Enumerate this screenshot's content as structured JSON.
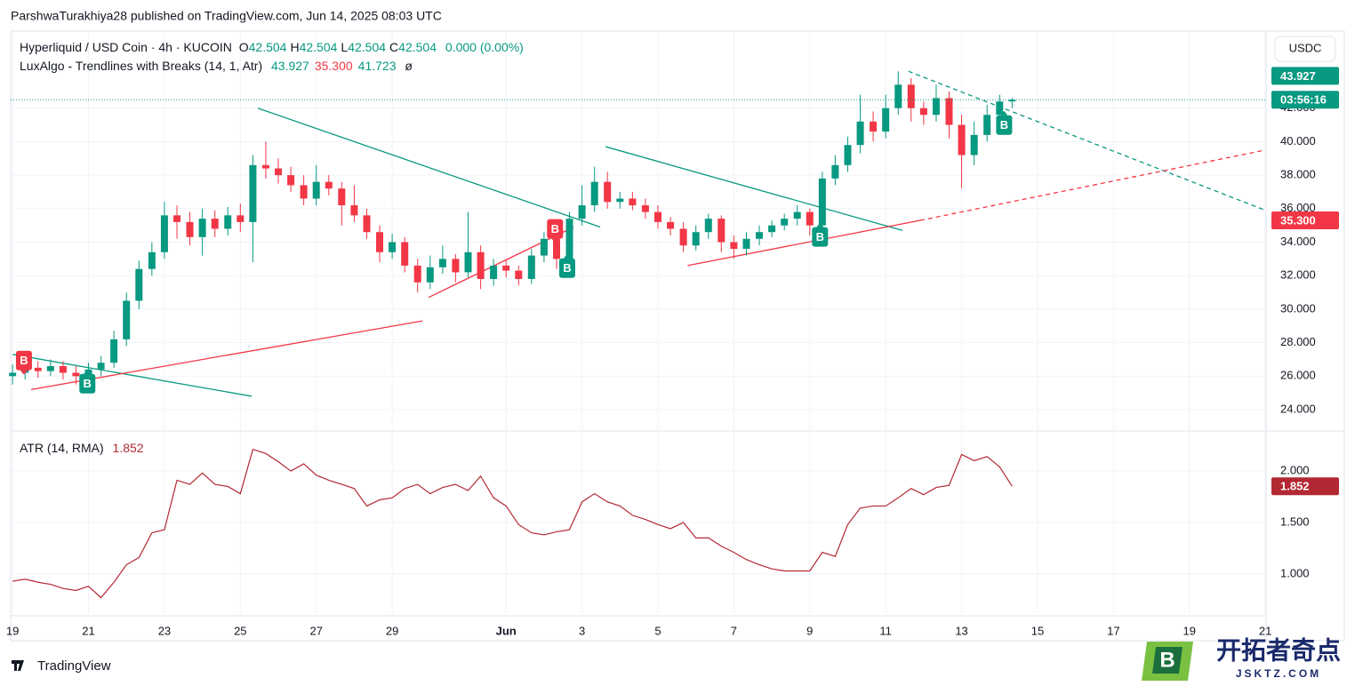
{
  "header": {
    "attribution": "ParshwaTurakhiya28 published on TradingView.com, Jun 14, 2025 08:03 UTC"
  },
  "chart_data": {
    "type": "candlestick",
    "symbol": "Hyperliquid / USD Coin · 4h · KUCOIN",
    "ohlc_legend": [
      {
        "key": "O",
        "value": "42.504"
      },
      {
        "key": "H",
        "value": "42.504"
      },
      {
        "key": "L",
        "value": "42.504"
      },
      {
        "key": "C",
        "value": "42.504"
      }
    ],
    "change": "0.000 (0.00%)",
    "indicator": {
      "name": "LuxAlgo - Trendlines with Breaks (14, 1, Atr)",
      "values": [
        {
          "text": "43.927",
          "color": "#089981"
        },
        {
          "text": "35.300",
          "color": "#f23645"
        },
        {
          "text": "41.723",
          "color": "#089981"
        }
      ],
      "symbol": "ø"
    },
    "currency": "USDC",
    "up_color": "#089981",
    "down_color": "#f23645",
    "x": [
      0,
      0.33,
      0.67,
      1,
      1.33,
      1.67,
      2,
      2.33,
      2.67,
      3,
      3.33,
      3.67,
      4,
      4.33,
      4.67,
      5,
      5.33,
      5.67,
      6,
      6.33,
      6.67,
      7,
      7.33,
      7.67,
      8,
      8.33,
      8.67,
      9,
      9.33,
      9.67,
      10,
      10.33,
      10.67,
      11,
      11.33,
      11.67,
      12,
      12.33,
      12.67,
      13,
      13.33,
      13.67,
      14,
      14.33,
      14.67,
      15,
      15.33,
      15.67,
      16,
      16.33,
      16.67,
      17,
      17.33,
      17.67,
      18,
      18.33,
      18.67,
      19,
      19.33,
      19.67,
      20,
      20.33,
      20.67,
      21,
      21.33,
      21.67,
      22,
      22.33,
      22.67,
      23,
      23.33,
      23.67,
      24,
      24.33,
      24.67,
      25,
      25.33,
      25.67,
      26,
      26.33
    ],
    "open": [
      26.0,
      26.2,
      26.5,
      26.3,
      26.6,
      26.2,
      26.0,
      26.4,
      26.8,
      28.2,
      30.5,
      32.4,
      33.4,
      35.6,
      35.2,
      34.3,
      35.4,
      34.8,
      35.6,
      35.2,
      38.6,
      38.4,
      38.0,
      37.4,
      36.6,
      37.6,
      37.2,
      36.2,
      35.6,
      34.6,
      33.4,
      34.0,
      32.6,
      31.6,
      32.5,
      33.0,
      32.2,
      33.4,
      31.8,
      32.6,
      32.3,
      31.8,
      33.2,
      34.2,
      33.0,
      35.4,
      36.2,
      37.6,
      36.4,
      36.6,
      36.2,
      35.8,
      35.2,
      34.8,
      33.8,
      34.6,
      35.4,
      34.0,
      33.6,
      34.2,
      34.6,
      35.0,
      35.4,
      35.8,
      35.0,
      37.8,
      38.6,
      39.8,
      41.2,
      40.6,
      42.0,
      43.4,
      42.0,
      41.6,
      42.6,
      41.0,
      39.2,
      40.4,
      41.6,
      42.4
    ],
    "high": [
      26.7,
      27.0,
      26.9,
      27.0,
      26.9,
      26.6,
      26.8,
      27.2,
      28.7,
      31.0,
      32.9,
      34.0,
      36.4,
      36.2,
      35.8,
      36.0,
      35.9,
      36.1,
      36.3,
      39.2,
      40.0,
      39.0,
      38.5,
      38.0,
      38.6,
      38.0,
      37.6,
      37.4,
      36.0,
      35.0,
      34.5,
      34.3,
      33.0,
      33.2,
      33.8,
      33.3,
      35.8,
      33.8,
      33.0,
      32.9,
      32.6,
      33.6,
      34.6,
      34.5,
      35.8,
      37.4,
      38.5,
      38.2,
      37.0,
      37.0,
      36.6,
      36.2,
      35.5,
      35.2,
      35.0,
      35.7,
      35.6,
      34.4,
      34.6,
      35.0,
      35.3,
      35.7,
      36.2,
      36.0,
      38.2,
      39.2,
      40.3,
      42.8,
      41.8,
      42.8,
      44.2,
      43.8,
      42.4,
      43.4,
      43.0,
      41.6,
      41.2,
      42.2,
      42.8,
      42.6
    ],
    "low": [
      25.5,
      25.8,
      25.9,
      26.0,
      25.8,
      25.5,
      25.6,
      26.0,
      26.5,
      27.8,
      30.0,
      32.0,
      33.0,
      34.2,
      33.8,
      33.2,
      34.3,
      34.4,
      34.6,
      32.8,
      37.8,
      37.5,
      37.0,
      36.2,
      36.2,
      36.8,
      35.0,
      35.2,
      34.2,
      32.8,
      33.0,
      32.2,
      31.0,
      31.2,
      32.1,
      31.6,
      31.9,
      31.2,
      31.4,
      31.9,
      31.4,
      31.5,
      32.8,
      32.4,
      32.6,
      35.0,
      35.8,
      36.0,
      36.0,
      35.9,
      35.4,
      34.8,
      34.4,
      33.4,
      33.5,
      34.2,
      33.4,
      33.0,
      33.2,
      33.8,
      34.3,
      34.7,
      35.0,
      34.4,
      34.8,
      37.4,
      38.2,
      39.3,
      40.0,
      40.2,
      41.6,
      41.2,
      41.0,
      41.2,
      40.2,
      37.2,
      38.6,
      40.0,
      41.2,
      42.0
    ],
    "close": [
      26.2,
      26.5,
      26.3,
      26.6,
      26.2,
      26.0,
      26.4,
      26.8,
      28.2,
      30.5,
      32.4,
      33.4,
      35.6,
      35.2,
      34.3,
      35.4,
      34.8,
      35.6,
      35.2,
      38.6,
      38.4,
      38.0,
      37.4,
      36.6,
      37.6,
      37.2,
      36.2,
      35.6,
      34.6,
      33.4,
      34.0,
      32.6,
      31.6,
      32.5,
      33.0,
      32.2,
      33.4,
      31.8,
      32.6,
      32.3,
      31.8,
      33.2,
      34.2,
      33.0,
      35.4,
      36.2,
      37.6,
      36.4,
      36.6,
      36.2,
      35.8,
      35.2,
      34.8,
      33.8,
      34.6,
      35.4,
      34.0,
      33.6,
      34.2,
      34.6,
      35.0,
      35.4,
      35.8,
      35.0,
      37.8,
      38.6,
      39.8,
      41.2,
      40.6,
      42.0,
      43.4,
      42.0,
      41.6,
      42.6,
      41.0,
      39.2,
      40.4,
      41.6,
      42.4,
      42.504
    ],
    "xlim": [
      -0.05,
      33.02
    ],
    "xticks": [
      {
        "value": 0,
        "label": "19"
      },
      {
        "value": 2,
        "label": "21"
      },
      {
        "value": 4,
        "label": "23"
      },
      {
        "value": 6,
        "label": "25"
      },
      {
        "value": 8,
        "label": "27"
      },
      {
        "value": 10,
        "label": "29"
      },
      {
        "value": 13,
        "label": "Jun"
      },
      {
        "value": 15,
        "label": "3"
      },
      {
        "value": 17,
        "label": "5"
      },
      {
        "value": 19,
        "label": "7"
      },
      {
        "value": 21,
        "label": "9"
      },
      {
        "value": 23,
        "label": "11"
      },
      {
        "value": 25,
        "label": "13"
      },
      {
        "value": 27,
        "label": "15"
      },
      {
        "value": 29,
        "label": "17"
      },
      {
        "value": 31,
        "label": "19"
      },
      {
        "value": 33,
        "label": "21"
      }
    ],
    "ylim": [
      22.78,
      46.6
    ],
    "yticks": [
      {
        "value": 24,
        "label": "24.000"
      },
      {
        "value": 26,
        "label": "26.000"
      },
      {
        "value": 28,
        "label": "28.000"
      },
      {
        "value": 30,
        "label": "30.000"
      },
      {
        "value": 32,
        "label": "32.000"
      },
      {
        "value": 34,
        "label": "34.000"
      },
      {
        "value": 36,
        "label": "36.000"
      },
      {
        "value": 38,
        "label": "38.000"
      },
      {
        "value": 40,
        "label": "40.000"
      },
      {
        "value": 42,
        "label": "42.000"
      }
    ],
    "grid": true,
    "price_line": {
      "value": 42.504,
      "label": "03:56:16",
      "color": "#089981"
    },
    "axis_labels": [
      {
        "value": 43.927,
        "label": "43.927",
        "color": "#089981"
      },
      {
        "value": 35.3,
        "label": "35.300",
        "color": "#f23645"
      }
    ],
    "lines": [
      {
        "x1": 0,
        "y1": 27.3,
        "x2": 6.3,
        "y2": 24.8,
        "color": "#089981",
        "dashed": false
      },
      {
        "x1": 6.46,
        "y1": 42.0,
        "x2": 15.48,
        "y2": 34.9,
        "color": "#089981",
        "dashed": false
      },
      {
        "x1": 15.62,
        "y1": 39.7,
        "x2": 23.44,
        "y2": 34.7,
        "color": "#089981",
        "dashed": false
      },
      {
        "x1": 23.6,
        "y1": 44.2,
        "x2": 33.0,
        "y2": 35.9,
        "color": "#089981",
        "dashed": true
      },
      {
        "x1": 0.49,
        "y1": 25.2,
        "x2": 10.8,
        "y2": 29.3,
        "color": "#f23645",
        "dashed": false
      },
      {
        "x1": 10.96,
        "y1": 30.7,
        "x2": 14.78,
        "y2": 34.9,
        "color": "#f23645",
        "dashed": false
      },
      {
        "x1": 17.78,
        "y1": 32.6,
        "x2": 23.91,
        "y2": 35.3,
        "color": "#f23645",
        "dashed": false
      },
      {
        "x1": 23.91,
        "y1": 35.3,
        "x2": 33.0,
        "y2": 39.5,
        "color": "#f23645",
        "dashed": true
      }
    ],
    "breaks": [
      {
        "x": 0.3,
        "price": 26.93,
        "label": "B",
        "color": "#f23645"
      },
      {
        "x": 1.97,
        "price": 25.55,
        "label": "B",
        "color": "#089981"
      },
      {
        "x": 14.29,
        "price": 34.79,
        "label": "B",
        "color": "#f23645"
      },
      {
        "x": 14.61,
        "price": 32.45,
        "label": "B",
        "color": "#089981"
      },
      {
        "x": 21.27,
        "price": 34.31,
        "label": "B",
        "color": "#089981"
      },
      {
        "x": 26.12,
        "price": 40.99,
        "label": "B",
        "color": "#089981"
      }
    ],
    "atr": {
      "name": "ATR (14, RMA)",
      "value_label": "1.852",
      "color": "#b22833",
      "values": [
        0.93,
        0.95,
        0.92,
        0.9,
        0.86,
        0.84,
        0.88,
        0.77,
        0.92,
        1.09,
        1.16,
        1.4,
        1.43,
        1.91,
        1.87,
        1.98,
        1.87,
        1.85,
        1.78,
        2.21,
        2.17,
        2.09,
        2.0,
        2.07,
        1.96,
        1.91,
        1.87,
        1.83,
        1.66,
        1.72,
        1.74,
        1.83,
        1.87,
        1.78,
        1.84,
        1.87,
        1.81,
        1.95,
        1.74,
        1.66,
        1.48,
        1.4,
        1.38,
        1.41,
        1.43,
        1.7,
        1.78,
        1.7,
        1.66,
        1.57,
        1.53,
        1.48,
        1.44,
        1.5,
        1.35,
        1.35,
        1.27,
        1.21,
        1.14,
        1.09,
        1.05,
        1.03,
        1.03,
        1.03,
        1.21,
        1.17,
        1.48,
        1.64,
        1.66,
        1.66,
        1.74,
        1.83,
        1.77,
        1.84,
        1.86,
        2.16,
        2.1,
        2.14,
        2.04,
        1.852
      ],
      "ylim": [
        0.62,
        2.38
      ],
      "yticks": [
        {
          "value": 1,
          "label": "1.000"
        },
        {
          "value": 1.5,
          "label": "1.500"
        },
        {
          "value": 2,
          "label": "2.000"
        }
      ],
      "last": {
        "value": 1.852,
        "label": "1.852"
      }
    }
  },
  "footer": {
    "brand": "TradingView",
    "logo_letter": "B",
    "watermark": "开拓者奇点",
    "watermark_url": "JSKTZ.COM"
  }
}
